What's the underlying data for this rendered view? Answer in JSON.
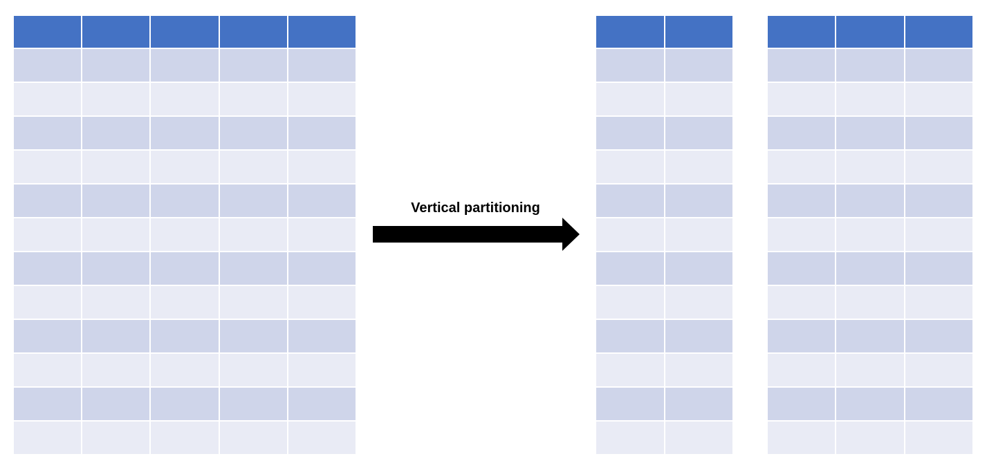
{
  "colors": {
    "header": "#4472c4",
    "row_dark": "#cfd5ea",
    "row_light": "#e9ebf5",
    "arrow": "#000000"
  },
  "tables": {
    "original": {
      "columns": 5,
      "body_rows": 12
    },
    "partition_a": {
      "columns": 2,
      "body_rows": 12
    },
    "partition_b": {
      "columns": 3,
      "body_rows": 12
    }
  },
  "arrow": {
    "label": "Vertical partitioning"
  }
}
